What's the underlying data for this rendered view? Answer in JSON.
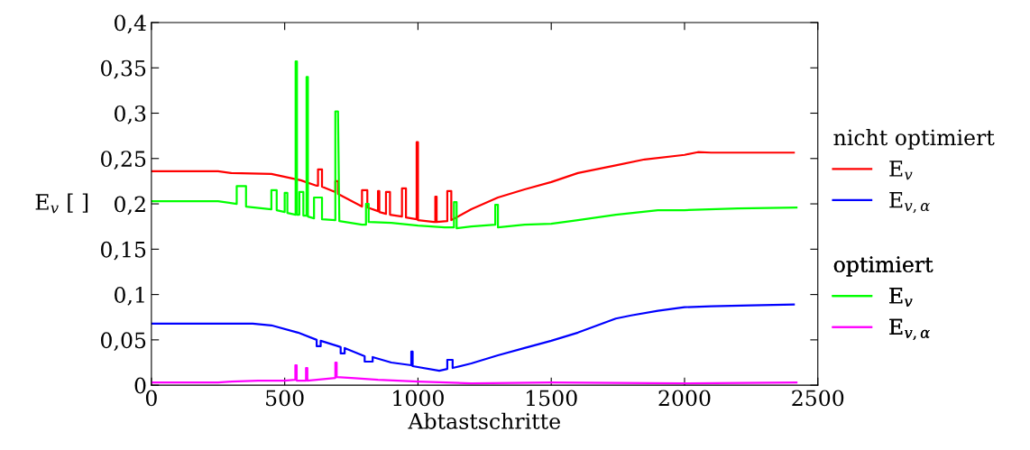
{
  "chart_data": {
    "type": "line",
    "xlabel": "Abtastschritte",
    "ylabel": "E$_{v}$ [ ]",
    "annotations": [
      "nicht optimiert",
      "optimiert"
    ],
    "xlim": [
      0,
      2500
    ],
    "xticks": [
      0,
      500,
      1000,
      1500,
      2000,
      2500
    ],
    "ylim": [
      0,
      0.4
    ],
    "yticks": [
      {
        "value": 0,
        "label": "0"
      },
      {
        "value": 0.05,
        "label": "0,05"
      },
      {
        "value": 0.1,
        "label": "0,1"
      },
      {
        "value": 0.15,
        "label": "0,15"
      },
      {
        "value": 0.2,
        "label": "0,2"
      },
      {
        "value": 0.25,
        "label": "0,25"
      },
      {
        "value": 0.3,
        "label": "0,3"
      },
      {
        "value": 0.35,
        "label": "0,35"
      },
      {
        "value": 0.4,
        "label": "0,4"
      }
    ],
    "grid": false,
    "legend": "right",
    "marker": "none",
    "line_style": "solid",
    "series": [
      {
        "name": "E$_{v}$",
        "color": "#ff0000",
        "x": [
          0,
          250,
          300,
          450,
          560,
          620,
          625,
          625,
          640,
          640,
          690,
          690,
          700,
          700,
          790,
          790,
          810,
          810,
          850,
          850,
          855,
          855,
          880,
          880,
          895,
          895,
          940,
          940,
          955,
          955,
          995,
          995,
          1000,
          1000,
          1060,
          1065,
          1065,
          1070,
          1070,
          1110,
          1110,
          1125,
          1125,
          1200,
          1300,
          1400,
          1500,
          1600,
          1742,
          1850,
          2000,
          2050,
          2100,
          2410
        ],
        "values": [
          0.236,
          0.236,
          0.234,
          0.233,
          0.226,
          0.22,
          0.22,
          0.238,
          0.238,
          0.219,
          0.213,
          0.225,
          0.225,
          0.211,
          0.197,
          0.215,
          0.215,
          0.196,
          0.192,
          0.214,
          0.214,
          0.191,
          0.189,
          0.213,
          0.213,
          0.188,
          0.186,
          0.217,
          0.217,
          0.185,
          0.183,
          0.268,
          0.268,
          0.182,
          0.18,
          0.18,
          0.208,
          0.208,
          0.18,
          0.181,
          0.214,
          0.214,
          0.182,
          0.194,
          0.207,
          0.216,
          0.224,
          0.234,
          0.2425,
          0.249,
          0.254,
          0.257,
          0.2565,
          0.2565
        ]
      },
      {
        "name": "E$_{v,α}$",
        "color": "#0000ff",
        "x": [
          0,
          380,
          450,
          550,
          620,
          620,
          635,
          635,
          700,
          710,
          710,
          725,
          725,
          800,
          800,
          830,
          830,
          900,
          975,
          975,
          980,
          980,
          1080,
          1110,
          1110,
          1130,
          1130,
          1200,
          1300,
          1400,
          1500,
          1600,
          1742,
          1800,
          1900,
          2000,
          2100,
          2250,
          2410
        ],
        "values": [
          0.068,
          0.068,
          0.066,
          0.058,
          0.05,
          0.043,
          0.043,
          0.049,
          0.043,
          0.042,
          0.035,
          0.035,
          0.041,
          0.032,
          0.026,
          0.026,
          0.031,
          0.025,
          0.022,
          0.037,
          0.037,
          0.021,
          0.016,
          0.018,
          0.028,
          0.028,
          0.019,
          0.024,
          0.033,
          0.041,
          0.049,
          0.058,
          0.0735,
          0.077,
          0.082,
          0.086,
          0.087,
          0.088,
          0.089
        ]
      },
      {
        "name": "E$_{v}$",
        "color": "#00ff00",
        "x": [
          0,
          250,
          320,
          320,
          355,
          355,
          450,
          450,
          470,
          470,
          500,
          500,
          510,
          510,
          541,
          541,
          546,
          546,
          555,
          555,
          570,
          570,
          582,
          582,
          587,
          587,
          610,
          610,
          640,
          640,
          690,
          690,
          700,
          705,
          790,
          805,
          805,
          815,
          815,
          900,
          1000,
          1100,
          1135,
          1135,
          1145,
          1145,
          1200,
          1290,
          1290,
          1300,
          1300,
          1400,
          1500,
          1600,
          1742,
          1900,
          2000,
          2200,
          2420
        ],
        "values": [
          0.203,
          0.203,
          0.2,
          0.2195,
          0.2195,
          0.197,
          0.194,
          0.215,
          0.215,
          0.193,
          0.191,
          0.212,
          0.212,
          0.19,
          0.188,
          0.357,
          0.357,
          0.188,
          0.188,
          0.213,
          0.213,
          0.187,
          0.187,
          0.34,
          0.34,
          0.186,
          0.184,
          0.207,
          0.207,
          0.183,
          0.182,
          0.302,
          0.302,
          0.181,
          0.177,
          0.177,
          0.2,
          0.2,
          0.18,
          0.179,
          0.176,
          0.174,
          0.174,
          0.202,
          0.202,
          0.173,
          0.175,
          0.177,
          0.199,
          0.199,
          0.174,
          0.177,
          0.178,
          0.182,
          0.188,
          0.193,
          0.193,
          0.195,
          0.196
        ]
      },
      {
        "name": "E$_{v,α}$",
        "color": "#ff00ff",
        "x": [
          0,
          250,
          300,
          400,
          500,
          540,
          540,
          545,
          545,
          580,
          580,
          585,
          585,
          620,
          690,
          690,
          695,
          695,
          750,
          850,
          1000,
          1200,
          1500,
          2000,
          2420
        ],
        "values": [
          0.003,
          0.003,
          0.004,
          0.005,
          0.005,
          0.006,
          0.022,
          0.022,
          0.005,
          0.005,
          0.019,
          0.019,
          0.005,
          0.006,
          0.008,
          0.025,
          0.025,
          0.009,
          0.008,
          0.006,
          0.004,
          0.002,
          0.003,
          0.002,
          0.003
        ]
      }
    ]
  }
}
